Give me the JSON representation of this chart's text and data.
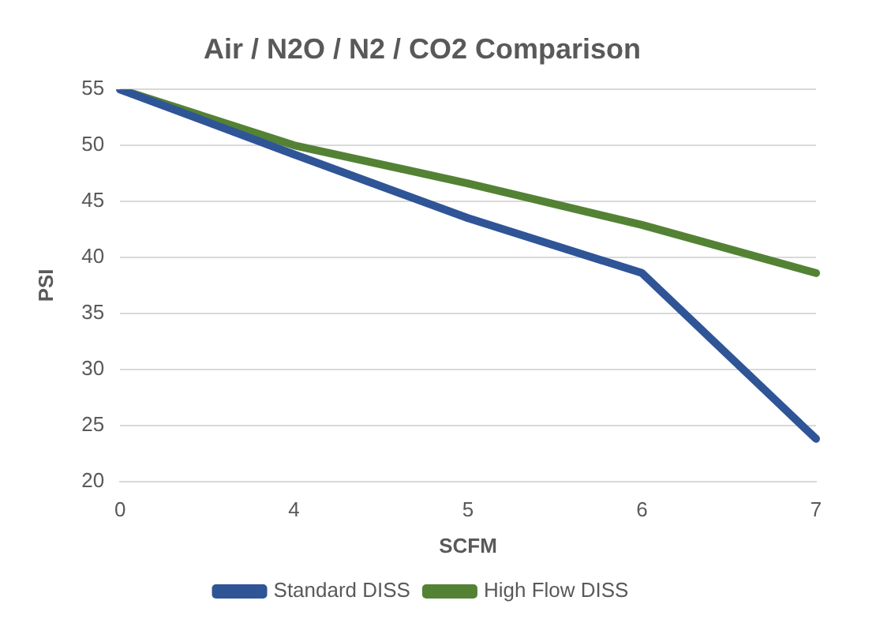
{
  "chart_data": {
    "type": "line",
    "title": "Air / N2O / N2 / CO2 Comparison",
    "xlabel": "SCFM",
    "ylabel": "PSI",
    "categories": [
      "0",
      "4",
      "5",
      "6",
      "7"
    ],
    "series": [
      {
        "name": "Standard DISS",
        "color": "#2f5597",
        "values": [
          55,
          49.2,
          43.5,
          38.6,
          23.8
        ]
      },
      {
        "name": "High Flow DISS",
        "color": "#548235",
        "values": [
          55,
          50,
          46.6,
          42.9,
          38.6
        ]
      }
    ],
    "ylim": [
      20,
      55
    ],
    "yticks": [
      20,
      25,
      30,
      35,
      40,
      45,
      50,
      55
    ],
    "grid": "y",
    "legend": "bottom",
    "marker": "none",
    "line_style": "solid"
  }
}
